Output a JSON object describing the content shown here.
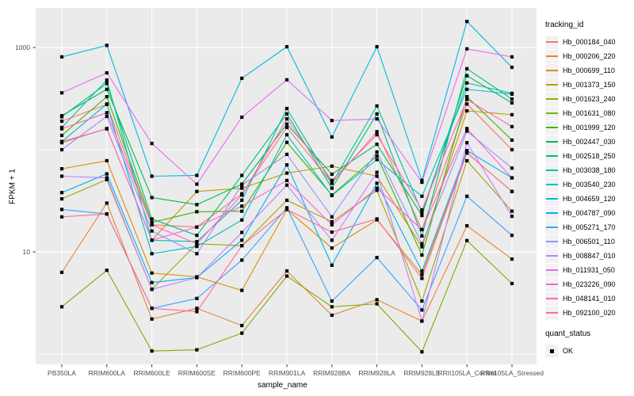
{
  "chart": {
    "y_axis_title": "FPKM + 1",
    "x_axis_title": "sample_name",
    "legend_title": "tracking_id",
    "quant_legend_title": "quant_status",
    "quant_ok_label": "OK"
  },
  "chart_data": {
    "type": "line",
    "title": "",
    "xlabel": "sample_name",
    "ylabel": "FPKM + 1",
    "y_scale": "log10",
    "ylim": [
      0.8,
      2600
    ],
    "grid": true,
    "panel_background": "#EBEBEB",
    "gridline_color": "#FFFFFF",
    "legend_position": "right",
    "legend_title": "tracking_id",
    "point_marker": "black-square",
    "y_ticks": [
      {
        "label": "1000",
        "value": 1000
      },
      {
        "label": "10",
        "value": 10
      }
    ],
    "y_minor_gridlines": [
      1,
      100
    ],
    "categories": [
      "PB350LA",
      "RRIM600LA",
      "RRIM600LE",
      "RRIM600SE",
      "RRIM600PE",
      "RRIM901LA",
      "RRIM928BA",
      "RRIM928LA",
      "RRIM928LE",
      "RRII105LA_Control",
      "RRII105LA_Stressed"
    ],
    "series": [
      {
        "name": "Hb_000184_040",
        "color": "#F8766D",
        "values": [
          190,
          277,
          18.4,
          17.5,
          37,
          165,
          47,
          150,
          16.5,
          280,
          100
        ]
      },
      {
        "name": "Hb_000206_220",
        "color": "#EA8331",
        "values": [
          6.3,
          30,
          2.2,
          2.8,
          1.9,
          6.5,
          2.4,
          3.4,
          2.1,
          18,
          8.5
        ]
      },
      {
        "name": "Hb_000699_110",
        "color": "#D89000",
        "values": [
          65,
          78,
          6.2,
          5.7,
          4.2,
          26,
          10.9,
          20.6,
          6.0,
          93,
          39
        ]
      },
      {
        "name": "Hb_001373_150",
        "color": "#C09B00",
        "values": [
          117,
          161,
          13,
          39,
          42,
          59,
          69,
          55,
          11.2,
          240,
          220
        ]
      },
      {
        "name": "Hb_001623_240",
        "color": "#A3A500",
        "values": [
          33,
          51,
          4.3,
          12,
          11.5,
          32,
          19.7,
          40,
          3.3,
          78,
          25
        ]
      },
      {
        "name": "Hb_001631_080",
        "color": "#7CAE00",
        "values": [
          2.9,
          6.6,
          1.07,
          1.1,
          1.6,
          5.8,
          2.9,
          3.1,
          1.05,
          12.9,
          4.9
        ]
      },
      {
        "name": "Hb_001999_120",
        "color": "#39B600",
        "values": [
          138,
          330,
          19.4,
          24.7,
          25,
          118,
          36,
          87,
          9.3,
          330,
          124
        ]
      },
      {
        "name": "Hb_002447_030",
        "color": "#00BB4E",
        "values": [
          215,
          390,
          34,
          29,
          46,
          178,
          57.5,
          113,
          22.7,
          530,
          287
        ]
      },
      {
        "name": "Hb_002518_250",
        "color": "#00BF7D",
        "values": [
          210,
          445,
          21,
          14.5,
          56,
          224,
          42,
          224,
          14.3,
          620,
          313
        ]
      },
      {
        "name": "Hb_003038_180",
        "color": "#00C1A3",
        "values": [
          165,
          480,
          13,
          12.6,
          32,
          253,
          46.8,
          268,
          24.4,
          450,
          356
        ]
      },
      {
        "name": "Hb_003540_230",
        "color": "#00BFC4",
        "values": [
          120,
          280,
          9.6,
          11.3,
          20.5,
          140,
          35.6,
          80,
          35,
          390,
          350
        ]
      },
      {
        "name": "Hb_004659_120",
        "color": "#00BAE0",
        "values": [
          810,
          1050,
          55,
          56,
          500,
          1018,
          133,
          1018,
          50,
          1800,
          640
        ]
      },
      {
        "name": "Hb_004787_090",
        "color": "#00B0F6",
        "values": [
          38,
          58,
          5.0,
          5.6,
          13,
          71,
          7.4,
          47,
          6.5,
          98,
          53
        ]
      },
      {
        "name": "Hb_005271_170",
        "color": "#35A2FF",
        "values": [
          26,
          23.5,
          2.8,
          3.5,
          8.3,
          27,
          3.3,
          8.8,
          2.7,
          35,
          14.5
        ]
      },
      {
        "name": "Hb_006501_110",
        "color": "#9590FF",
        "values": [
          100,
          212,
          16,
          9.6,
          45,
          90,
          22,
          95,
          12,
          152,
          66
        ]
      },
      {
        "name": "Hb_008847_010",
        "color": "#C77CFF",
        "values": [
          55,
          53,
          4.3,
          5.6,
          15.5,
          45,
          13,
          60,
          2.1,
          117,
          22.3
        ]
      },
      {
        "name": "Hb_011931_050",
        "color": "#E76BF3",
        "values": [
          360,
          565,
          115,
          46,
          208,
          483,
          193,
          200,
          48,
          970,
          810
        ]
      },
      {
        "name": "Hb_023226_090",
        "color": "#FA62DB",
        "values": [
          120,
          160,
          13,
          17.5,
          28,
          50,
          18.4,
          42,
          16.5,
          161,
          53
        ]
      },
      {
        "name": "Hb_048141_010",
        "color": "#FF62BC",
        "values": [
          160,
          230,
          18.4,
          12,
          36,
          200,
          50,
          140,
          25.7,
          310,
          168
        ]
      },
      {
        "name": "Hb_092100_020",
        "color": "#FF6A98",
        "values": [
          22,
          23.5,
          2.8,
          2.6,
          11.5,
          26,
          15.6,
          21,
          5.5,
          93,
          39
        ]
      }
    ],
    "quant_status": {
      "title": "quant_status",
      "items": [
        {
          "label": "OK",
          "marker": "black-square"
        }
      ]
    }
  }
}
